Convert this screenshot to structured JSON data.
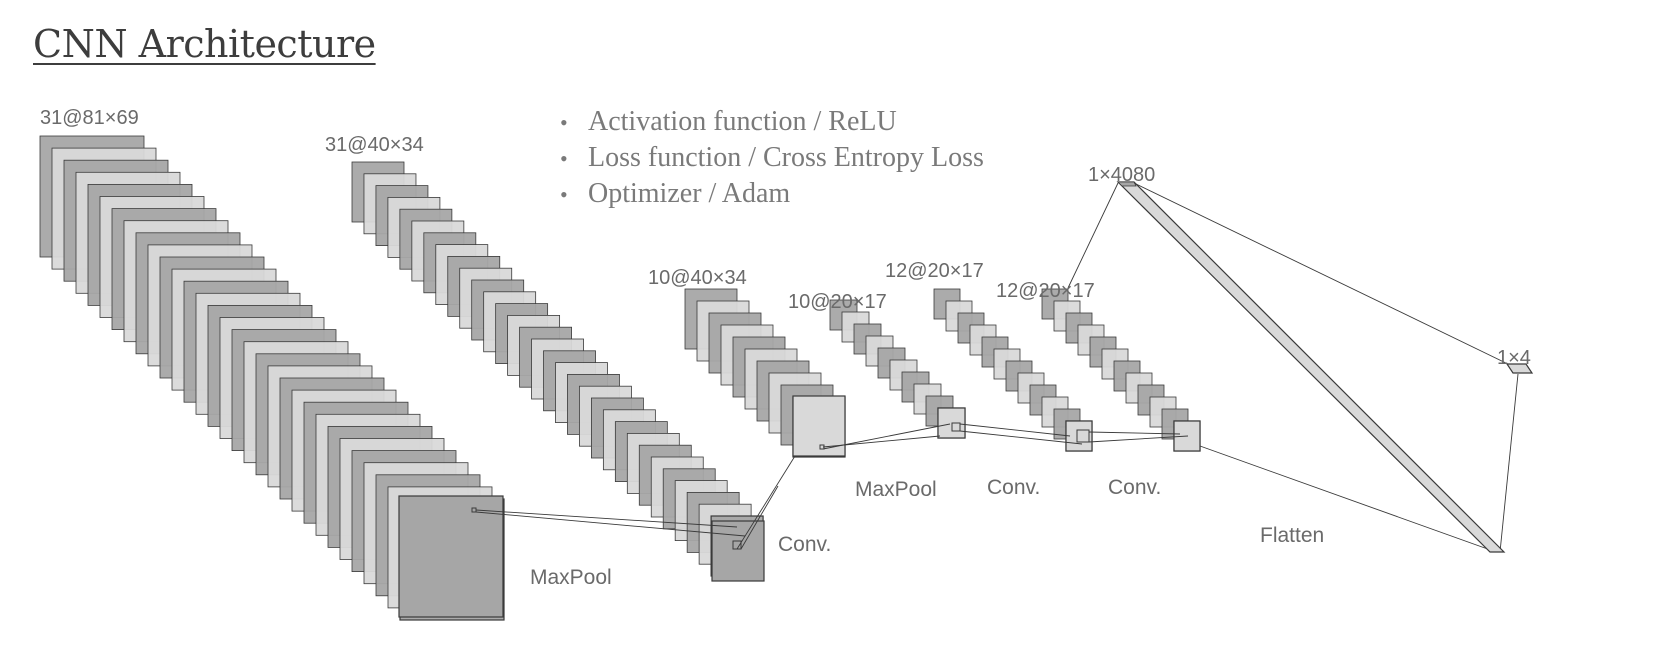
{
  "title": "CNN Architecture",
  "bullets": [
    "Activation function / ReLU",
    "Loss function / Cross Entropy Loss",
    "Optimizer / Adam"
  ],
  "layers": [
    {
      "label": "31@81×69",
      "maps": 31
    },
    {
      "label": "31@40×34",
      "maps": 31
    },
    {
      "label": "10@40×34",
      "maps": 10
    },
    {
      "label": "10@20×17",
      "maps": 10
    },
    {
      "label": "12@20×17",
      "maps": 12
    },
    {
      "label": "12@20×17",
      "maps": 12
    },
    {
      "label": "1×4080"
    },
    {
      "label": "1×4"
    }
  ],
  "operations": [
    "MaxPool",
    "Conv.",
    "MaxPool",
    "Conv.",
    "Conv.",
    "Flatten"
  ],
  "colors": {
    "map_dark": "#a6a6a6",
    "map_light": "#d9d9d9",
    "stroke": "#3a3a3a",
    "title": "#3d3d3d",
    "text": "#6a6a6a"
  }
}
